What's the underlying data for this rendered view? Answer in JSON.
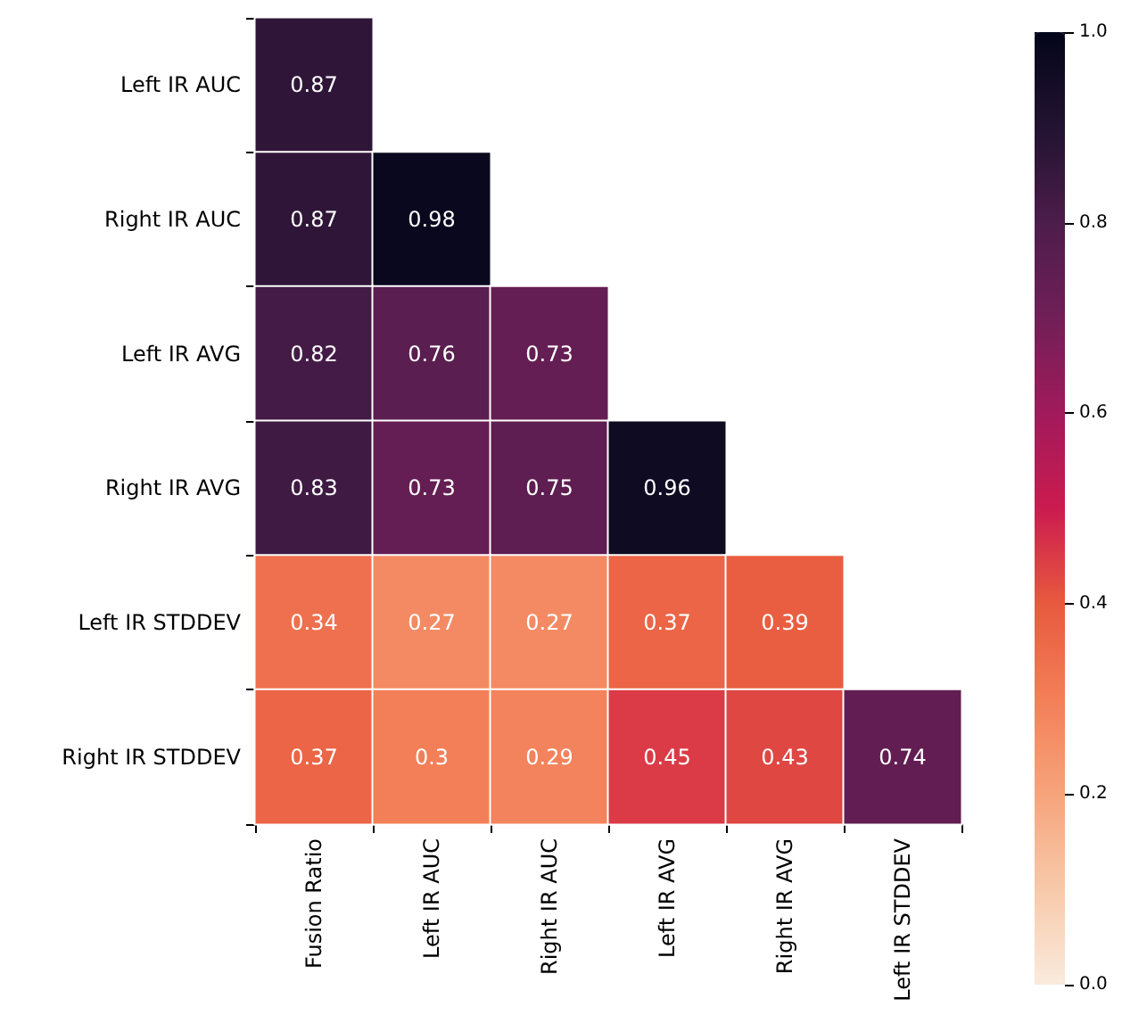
{
  "chart_data": {
    "type": "heatmap",
    "categories": [
      "Fusion Ratio",
      "Left IR AUC",
      "Right IR AUC",
      "Left IR AVG",
      "Right IR AVG",
      "Left IR STDDEV"
    ],
    "y_categories": [
      "Left IR AUC",
      "Right IR AUC",
      "Left IR AVG",
      "Right IR AVG",
      "Left IR STDDEV",
      "Right IR STDDEV"
    ],
    "cells": [
      [
        0.87,
        null,
        null,
        null,
        null,
        null
      ],
      [
        0.87,
        0.98,
        null,
        null,
        null,
        null
      ],
      [
        0.82,
        0.76,
        0.73,
        null,
        null,
        null
      ],
      [
        0.83,
        0.73,
        0.75,
        0.96,
        null,
        null
      ],
      [
        0.34,
        0.27,
        0.27,
        0.37,
        0.39,
        null
      ],
      [
        0.37,
        0.3,
        0.29,
        0.45,
        0.43,
        0.74
      ]
    ],
    "clim": [
      0,
      1
    ],
    "cticks": [
      {
        "value": 0,
        "label": "0.0"
      },
      {
        "value": 0.2,
        "label": "0.2"
      },
      {
        "value": 0.4,
        "label": "0.4"
      },
      {
        "value": 0.6,
        "label": "0.6"
      },
      {
        "value": 0.8,
        "label": "0.8"
      },
      {
        "value": 1,
        "label": "1.0"
      }
    ],
    "data_labels": true
  }
}
